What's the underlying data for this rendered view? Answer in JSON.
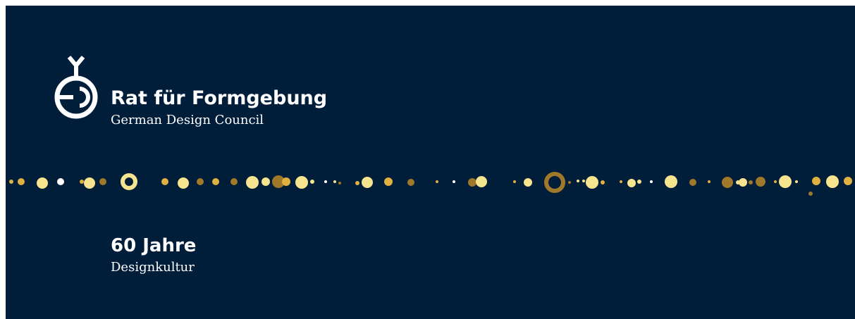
{
  "logo": {
    "title": "Rat für Formgebung",
    "subtitle": "German Design Council"
  },
  "tagline": {
    "title": "60 Jahre",
    "subtitle": "Designkultur"
  }
}
